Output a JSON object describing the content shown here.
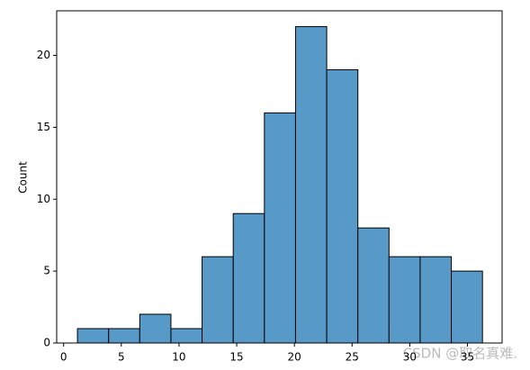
{
  "chart_data": {
    "type": "histogram",
    "y_label": "Count",
    "bins": [
      1.2,
      3.9,
      6.6,
      9.3,
      12.0,
      14.7,
      17.4,
      20.1,
      22.8,
      25.5,
      28.2,
      30.9,
      33.6,
      36.3
    ],
    "values": [
      1,
      1,
      2,
      1,
      6,
      9,
      16,
      22,
      19,
      8,
      6,
      6,
      5
    ],
    "color": "#5799c7",
    "xlim": [
      -0.6,
      38.0
    ],
    "ylim": [
      0,
      23.1
    ],
    "xticks": [
      0,
      5,
      10,
      15,
      20,
      25,
      30,
      35
    ],
    "yticks": [
      0,
      5,
      10,
      15,
      20
    ],
    "watermark": "CSDN @取名真难."
  }
}
